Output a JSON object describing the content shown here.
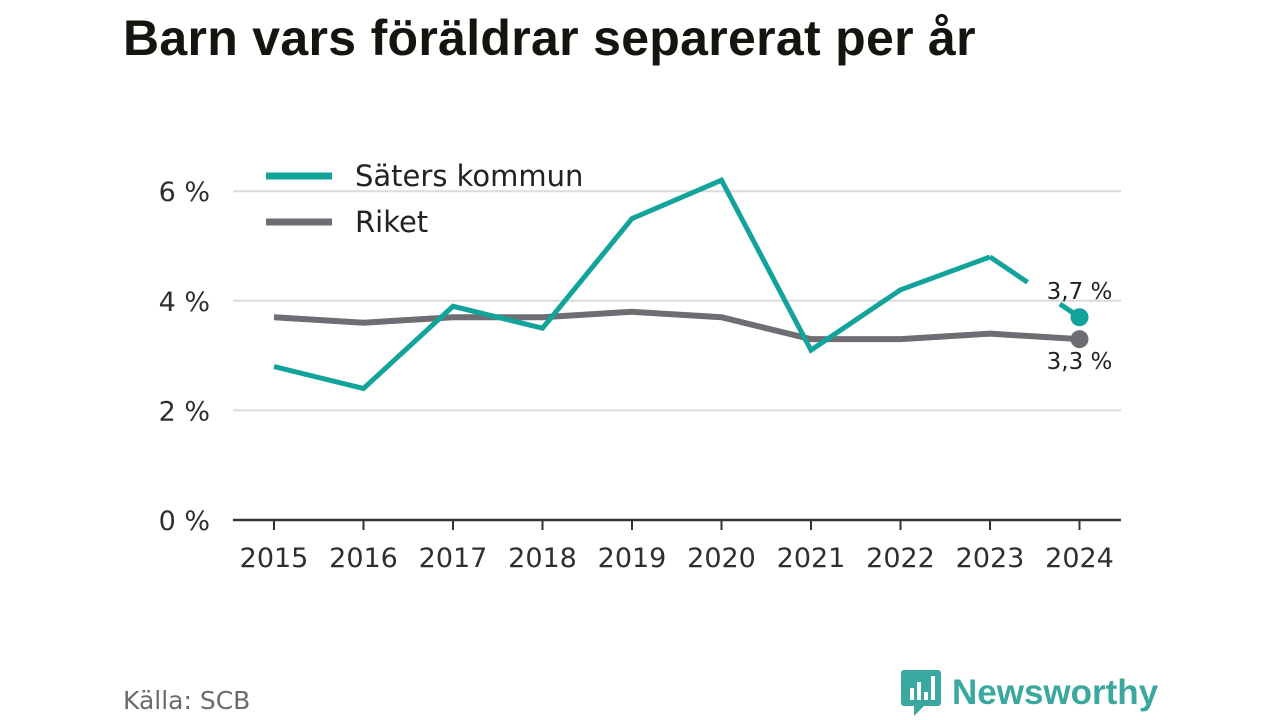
{
  "title": "Barn vars föräldrar separerat per år",
  "source": "Källa: SCB",
  "brand": {
    "name": "Newsworthy",
    "icon": "newsworthy-logo-icon",
    "color": "#3aa89e"
  },
  "chart_data": {
    "type": "line",
    "title": "Barn vars föräldrar separerat per år",
    "x": [
      "2015",
      "2016",
      "2017",
      "2018",
      "2019",
      "2020",
      "2021",
      "2022",
      "2023",
      "2024"
    ],
    "ylim": [
      0,
      6.6
    ],
    "yticks": [
      0,
      2,
      4,
      6
    ],
    "ytick_labels": [
      "0 %",
      "2 %",
      "4 %",
      "6 %"
    ],
    "grid": true,
    "legend": "top-left",
    "series": [
      {
        "name": "Säters kommun",
        "color": "#12a39a",
        "values": [
          2.8,
          2.4,
          3.9,
          3.5,
          5.5,
          6.2,
          3.1,
          4.2,
          4.8,
          3.7
        ],
        "end_label": "3,7 %"
      },
      {
        "name": "Riket",
        "color": "#6e6d74",
        "values": [
          3.7,
          3.6,
          3.7,
          3.7,
          3.8,
          3.7,
          3.3,
          3.3,
          3.4,
          3.3
        ],
        "end_label": "3,3 %"
      }
    ]
  }
}
